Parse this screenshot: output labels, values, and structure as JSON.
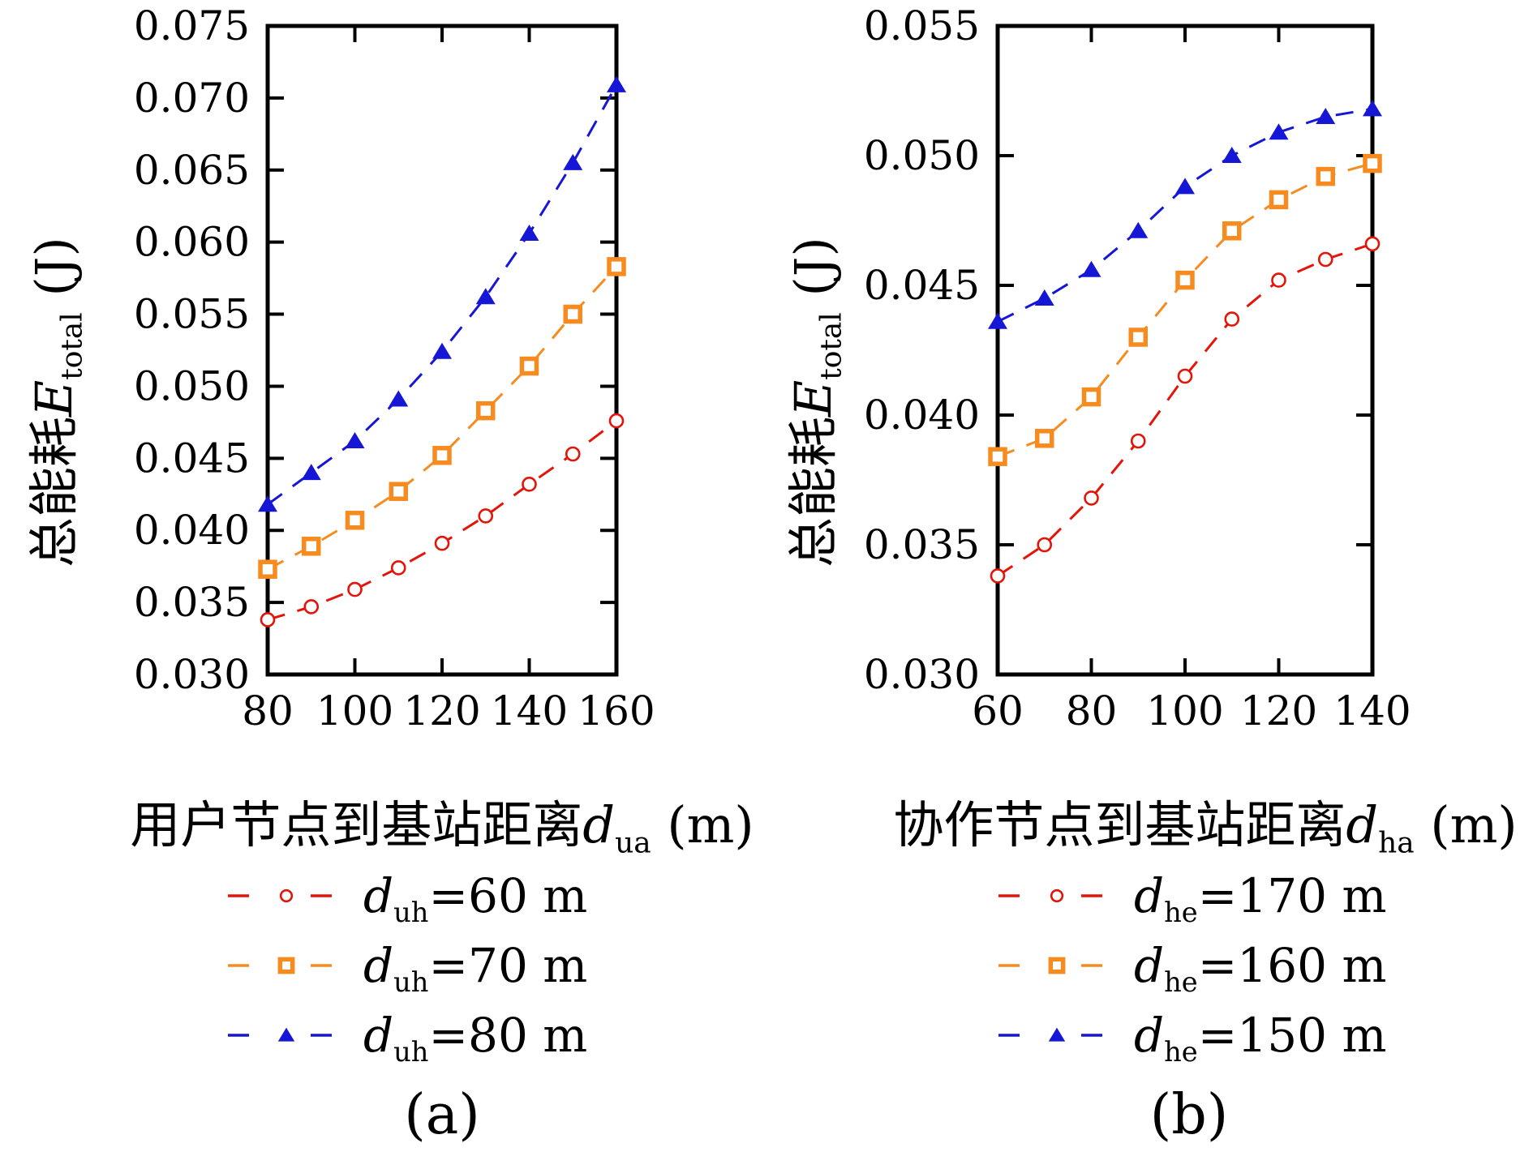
{
  "figure": {
    "background": "#ffffff",
    "axis_color": "#000000",
    "text_color": "#000000"
  },
  "chart_data": [
    {
      "type": "line",
      "panel": "a",
      "caption": "(a)",
      "xlabel_cn": "用户节点到基站距离",
      "xlabel_var": "d",
      "xlabel_sub": "ua",
      "xlabel_unit": " (m)",
      "ylabel_cn": "总能耗",
      "ylabel_var": "E",
      "ylabel_sub": "total",
      "ylabel_unit": " (J)",
      "x": [
        80,
        90,
        100,
        110,
        120,
        130,
        140,
        150,
        160
      ],
      "x_ticks": [
        80,
        100,
        120,
        140,
        160
      ],
      "xlim": [
        80,
        160
      ],
      "ylim": [
        0.03,
        0.075
      ],
      "y_tick_step": 0.005,
      "y_tick_decimals": 3,
      "grid": false,
      "legend_position": "below",
      "series": [
        {
          "label_var": "d",
          "label_sub": "uh",
          "label_rest": "=60 m",
          "color": "#e41408",
          "marker": "open-circle",
          "linestyle": "dashed",
          "values": [
            0.0338,
            0.0347,
            0.0359,
            0.0374,
            0.0391,
            0.041,
            0.0432,
            0.0453,
            0.0476
          ]
        },
        {
          "label_var": "d",
          "label_sub": "uh",
          "label_rest": "=70 m",
          "color": "#f68b1f",
          "marker": "open-square",
          "linestyle": "dashed",
          "values": [
            0.0373,
            0.0389,
            0.0407,
            0.0427,
            0.0452,
            0.0483,
            0.0514,
            0.055,
            0.0583
          ]
        },
        {
          "label_var": "d",
          "label_sub": "uh",
          "label_rest": "=80 m",
          "color": "#1616d6",
          "marker": "filled-triangle",
          "linestyle": "dashed",
          "values": [
            0.0418,
            0.044,
            0.0462,
            0.0491,
            0.0524,
            0.0562,
            0.0606,
            0.0655,
            0.0709
          ]
        }
      ]
    },
    {
      "type": "line",
      "panel": "b",
      "caption": "(b)",
      "xlabel_cn": "协作节点到基站距离",
      "xlabel_var": "d",
      "xlabel_sub": "ha",
      "xlabel_unit": " (m)",
      "ylabel_cn": "总能耗",
      "ylabel_var": "E",
      "ylabel_sub": "total",
      "ylabel_unit": " (J)",
      "x": [
        60,
        70,
        80,
        90,
        100,
        110,
        120,
        130,
        140
      ],
      "x_ticks": [
        60,
        80,
        100,
        120,
        140
      ],
      "xlim": [
        60,
        140
      ],
      "ylim": [
        0.03,
        0.055
      ],
      "y_tick_step": 0.005,
      "y_tick_decimals": 3,
      "grid": false,
      "legend_position": "below",
      "series": [
        {
          "label_var": "d",
          "label_sub": "he",
          "label_rest": "=170 m",
          "color": "#e41408",
          "marker": "open-circle",
          "linestyle": "dashed",
          "values": [
            0.0338,
            0.035,
            0.0368,
            0.039,
            0.0415,
            0.0437,
            0.0452,
            0.046,
            0.0466
          ]
        },
        {
          "label_var": "d",
          "label_sub": "he",
          "label_rest": "=160 m",
          "color": "#f68b1f",
          "marker": "open-square",
          "linestyle": "dashed",
          "values": [
            0.0384,
            0.0391,
            0.0407,
            0.043,
            0.0452,
            0.0471,
            0.0483,
            0.0492,
            0.0497
          ]
        },
        {
          "label_var": "d",
          "label_sub": "he",
          "label_rest": "=150 m",
          "color": "#1616d6",
          "marker": "filled-triangle",
          "linestyle": "dashed",
          "values": [
            0.0436,
            0.0445,
            0.0456,
            0.0471,
            0.0488,
            0.05,
            0.0509,
            0.0515,
            0.0518
          ]
        }
      ]
    }
  ]
}
